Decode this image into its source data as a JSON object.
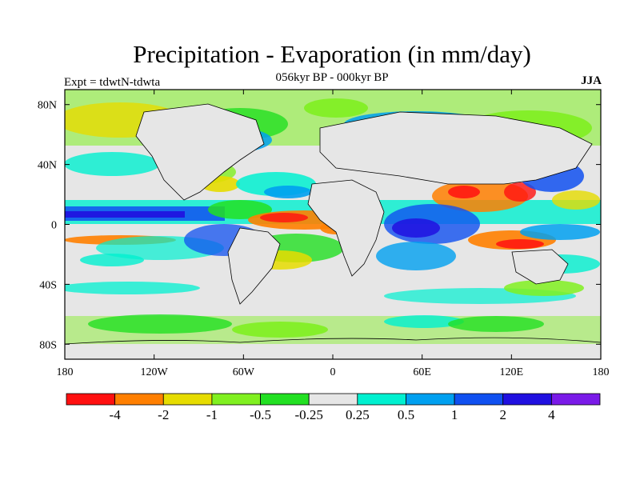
{
  "title": "Precipitation - Evaporation (in mm/day)",
  "subtitle": "056kyr BP - 000kyr BP",
  "left_label": "Expt = tdwtN-tdwta",
  "right_label": "JJA",
  "lat_ticks": [
    "80N",
    "40N",
    "0",
    "40S",
    "80S"
  ],
  "lon_ticks": [
    "180",
    "120W",
    "60W",
    "0",
    "60E",
    "120E",
    "180"
  ],
  "colorbar": {
    "colors": [
      "#ff1010",
      "#ff7f00",
      "#e6dc00",
      "#80f020",
      "#22e022",
      "#e6e6e6",
      "#00f0d0",
      "#00a0f0",
      "#1050f0",
      "#2010e0",
      "#7a1ae8"
    ],
    "labels": [
      "-4",
      "-2",
      "-1",
      "-0.5",
      "-0.25",
      "0.25",
      "0.5",
      "1",
      "2",
      "4"
    ]
  }
}
